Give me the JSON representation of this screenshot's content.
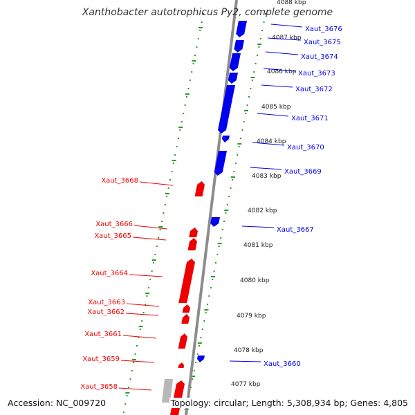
{
  "title": "Xanthobacter autotrophicus Py2, complete genome",
  "footer": {
    "accession": "Accession: NC_009720",
    "summary": "Topology: circular; Length: 5,308,934 bp; Genes: 4,805"
  },
  "colors": {
    "forward_gene": "#0000ee",
    "reverse_gene": "#ee0000",
    "other_feature": "#b8b8b8",
    "backbone": "#8c8c8c",
    "scale_ticks": "#2a9a2a",
    "kbp_label": "#222222"
  },
  "scale_labels": [
    {
      "kbp": 4088,
      "label": "4088 kbp"
    },
    {
      "kbp": 4087,
      "label": "4087 kbp"
    },
    {
      "kbp": 4086,
      "label": "4086 kbp"
    },
    {
      "kbp": 4085,
      "label": "4085 kbp"
    },
    {
      "kbp": 4084,
      "label": "4084 kbp"
    },
    {
      "kbp": 4083,
      "label": "4083 kbp"
    },
    {
      "kbp": 4082,
      "label": "4082 kbp"
    },
    {
      "kbp": 4081,
      "label": "4081 kbp"
    },
    {
      "kbp": 4080,
      "label": "4080 kbp"
    },
    {
      "kbp": 4079,
      "label": "4079 kbp"
    },
    {
      "kbp": 4078,
      "label": "4078 kbp"
    },
    {
      "kbp": 4077,
      "label": "4077 kbp"
    }
  ],
  "genes_forward": [
    {
      "name": "Xaut_3676"
    },
    {
      "name": "Xaut_3675"
    },
    {
      "name": "Xaut_3674"
    },
    {
      "name": "Xaut_3673"
    },
    {
      "name": "Xaut_3672"
    },
    {
      "name": "Xaut_3671"
    },
    {
      "name": "Xaut_3670"
    },
    {
      "name": "Xaut_3669"
    },
    {
      "name": "Xaut_3667"
    },
    {
      "name": "Xaut_3660"
    }
  ],
  "genes_reverse": [
    {
      "name": "Xaut_3668"
    },
    {
      "name": "Xaut_3666"
    },
    {
      "name": "Xaut_3665"
    },
    {
      "name": "Xaut_3664"
    },
    {
      "name": "Xaut_3663"
    },
    {
      "name": "Xaut_3662"
    },
    {
      "name": "Xaut_3661"
    },
    {
      "name": "Xaut_3659"
    },
    {
      "name": "Xaut_3658"
    }
  ]
}
